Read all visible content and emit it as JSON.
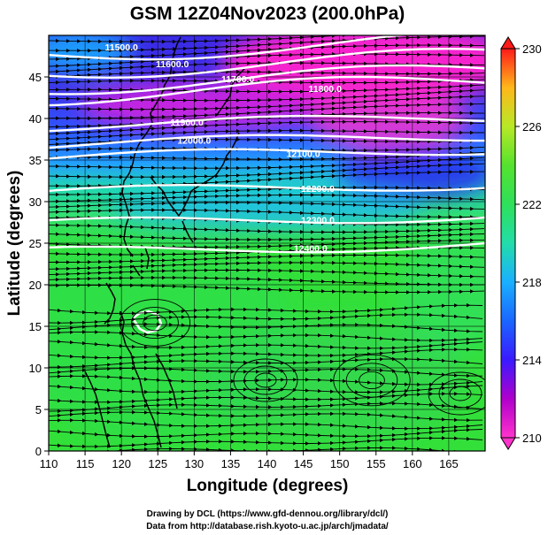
{
  "figure": {
    "title": "GSM 12Z04Nov2023 (200.0hPa)",
    "xlabel": "Longitude (degrees)",
    "ylabel": "Latitude  (degrees)",
    "credit_line1": "Drawing by DCL (https://www.gfd-dennou.org/library/dcl/)",
    "credit_line2": "Data from http://database.rish.kyoto-u.ac.jp/arch/jmadata/"
  },
  "chart_data": {
    "type": "heatmap",
    "title": "GSM 12Z04Nov2023 (200.0hPa)",
    "xlabel": "Longitude (degrees)",
    "ylabel": "Latitude  (degrees)",
    "xlim": [
      110,
      170
    ],
    "ylim": [
      0,
      50
    ],
    "x_ticks": [
      110,
      115,
      120,
      125,
      130,
      135,
      140,
      145,
      150,
      155,
      160,
      165
    ],
    "y_ticks": [
      0,
      5,
      10,
      15,
      20,
      25,
      30,
      35,
      40,
      45
    ],
    "colorbar": {
      "range": [
        210,
        230
      ],
      "ticks": [
        "230",
        "226",
        "222",
        "218",
        "214",
        "210"
      ],
      "colors": [
        "#ff33cc",
        "#7a00cc",
        "#1a2aff",
        "#1aa3ff",
        "#22dd99",
        "#33e033",
        "#9ae62a",
        "#ffd21a",
        "#ff5a1a",
        "#ff1a1a"
      ]
    },
    "height_contours": [
      {
        "label": "11500.0",
        "lon": 120,
        "lat": 48.6
      },
      {
        "label": "11600.0",
        "lon": 127,
        "lat": 46.6
      },
      {
        "label": "11700.0",
        "lon": 136,
        "lat": 44.8
      },
      {
        "label": "11800.0",
        "lon": 148,
        "lat": 43.6
      },
      {
        "label": "11900.0",
        "lon": 129,
        "lat": 39.6
      },
      {
        "label": "12000.0",
        "lon": 130,
        "lat": 37.4
      },
      {
        "label": "12100.0",
        "lon": 145,
        "lat": 35.8
      },
      {
        "label": "12200.0",
        "lon": 147,
        "lat": 31.6
      },
      {
        "label": "12300.0",
        "lon": 147,
        "lat": 27.8
      },
      {
        "label": "12400.0",
        "lon": 146,
        "lat": 24.4
      }
    ]
  }
}
